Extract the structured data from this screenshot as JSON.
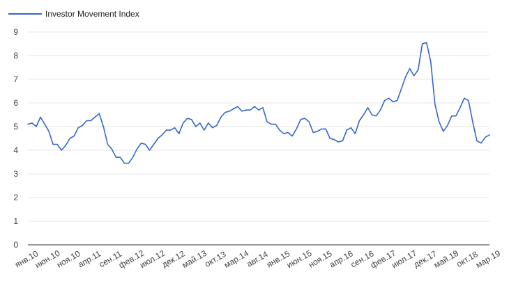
{
  "chart_data": {
    "type": "line",
    "title": "",
    "xlabel": "",
    "ylabel": "",
    "legend_position": "top-left",
    "grid": true,
    "ylim": [
      0,
      9
    ],
    "y_ticks": [
      0,
      1,
      2,
      3,
      4,
      5,
      6,
      7,
      8,
      9
    ],
    "x_tick_labels": [
      "янв.10",
      "июн.10",
      "ноя.10",
      "апр.11",
      "сен.11",
      "фев.12",
      "июл.12",
      "дек.12",
      "май.13",
      "окт.13",
      "мар.14",
      "авг.14",
      "янв.15",
      "июн.15",
      "ноя.15",
      "апр.16",
      "сен.16",
      "фев.17",
      "июл.17",
      "дек.17",
      "май.18",
      "окт.18",
      "мар.19"
    ],
    "x_start": "2010-01",
    "x_end": "2019-03",
    "x_tick_step_months": 5,
    "colors": {
      "line": "#3366cc",
      "grid": "#e6e6e6",
      "axis": "#333333"
    },
    "series": [
      {
        "name": "Investor Movement Index",
        "values": [
          5.1,
          5.15,
          5.0,
          5.4,
          5.1,
          4.8,
          4.25,
          4.25,
          4.0,
          4.2,
          4.5,
          4.6,
          4.95,
          5.05,
          5.25,
          5.25,
          5.4,
          5.55,
          5.0,
          4.25,
          4.05,
          3.7,
          3.7,
          3.45,
          3.45,
          3.7,
          4.05,
          4.3,
          4.25,
          4.0,
          4.25,
          4.5,
          4.65,
          4.85,
          4.85,
          4.95,
          4.7,
          5.15,
          5.35,
          5.3,
          5.0,
          5.15,
          4.85,
          5.15,
          4.95,
          5.05,
          5.4,
          5.6,
          5.65,
          5.75,
          5.85,
          5.65,
          5.7,
          5.7,
          5.85,
          5.7,
          5.8,
          5.2,
          5.1,
          5.1,
          4.85,
          4.7,
          4.75,
          4.6,
          4.9,
          5.3,
          5.35,
          5.2,
          4.75,
          4.8,
          4.9,
          4.9,
          4.5,
          4.45,
          4.35,
          4.4,
          4.85,
          4.95,
          4.7,
          5.25,
          5.5,
          5.8,
          5.5,
          5.45,
          5.7,
          6.1,
          6.2,
          6.05,
          6.1,
          6.6,
          7.1,
          7.45,
          7.15,
          7.4,
          8.5,
          8.55,
          7.75,
          5.95,
          5.2,
          4.8,
          5.05,
          5.45,
          5.45,
          5.8,
          6.2,
          6.1,
          5.2,
          4.4,
          4.3,
          4.55,
          4.65
        ]
      }
    ]
  }
}
